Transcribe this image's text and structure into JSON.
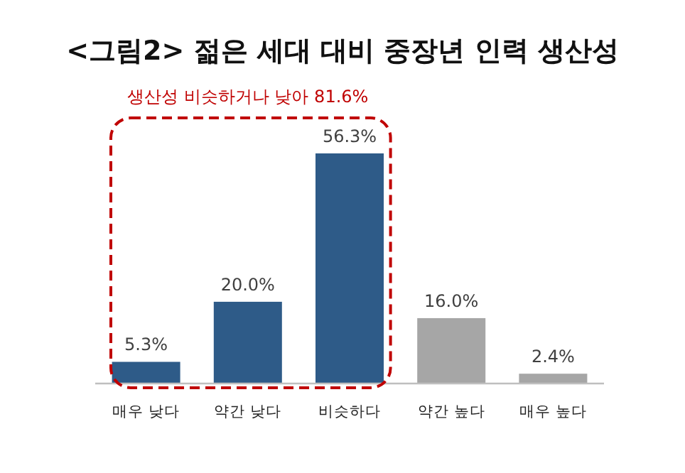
{
  "chart_data": {
    "type": "bar",
    "title": "<그림2> 젊은 세대 대비 중장년 인력 생산성",
    "categories": [
      "매우 낮다",
      "약간 낮다",
      "비슷하다",
      "약간 높다",
      "매우 높다"
    ],
    "values": [
      5.3,
      20.0,
      56.3,
      16.0,
      2.4
    ],
    "colors": [
      "#2e5b88",
      "#2e5b88",
      "#2e5b88",
      "#a6a6a6",
      "#a6a6a6"
    ],
    "value_labels": [
      "5.3%",
      "20.0%",
      "56.3%",
      "16.0%",
      "2.4%"
    ],
    "annotations": [
      "생산성 비슷하거나 낮아 81.6%"
    ]
  }
}
